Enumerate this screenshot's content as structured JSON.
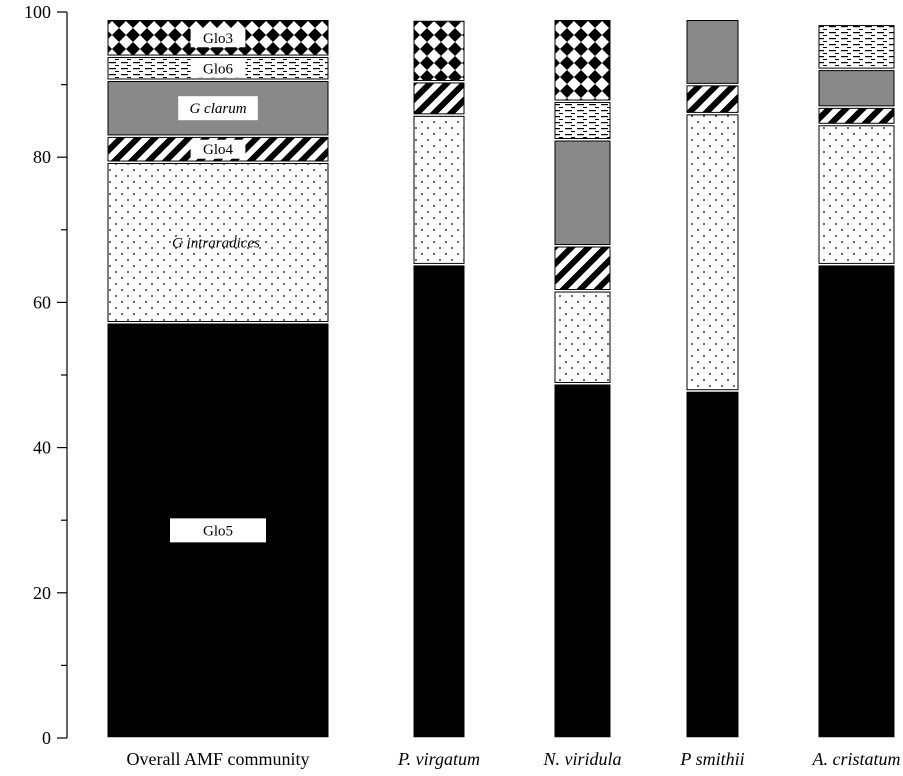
{
  "chart_data": {
    "type": "bar",
    "stacked": true,
    "ylim": [
      0,
      100
    ],
    "yticks": [
      0,
      20,
      40,
      60,
      80,
      100
    ],
    "xlabel": "",
    "ylabel": "",
    "grid": false,
    "categories": [
      "Overall AMF community",
      "P. virgatum",
      "N. viridula",
      "P smithii",
      "A. cristatum"
    ],
    "category_italic": [
      false,
      true,
      true,
      true,
      true
    ],
    "segment_labels": {
      "Glo5": "Glo5",
      "G intraradices": "G intraradices",
      "Glo4": "Glo4",
      "G clarum": "G clarum",
      "Glo6": "Glo6",
      "Glo3": "Glo3"
    },
    "series": [
      {
        "name": "Glo5",
        "pattern": "solid-black",
        "values": [
          57.2,
          65.2,
          48.8,
          47.8,
          65.2
        ]
      },
      {
        "name": "G intraradices",
        "pattern": "dots",
        "values": [
          22.1,
          20.6,
          12.8,
          38.2,
          19.3
        ]
      },
      {
        "name": "Glo4",
        "pattern": "diagonal-hatch",
        "values": [
          3.6,
          4.6,
          6.2,
          4.0,
          2.4
        ]
      },
      {
        "name": "G clarum",
        "pattern": "solid-gray",
        "values": [
          7.7,
          0,
          14.6,
          9.0,
          5.2
        ]
      },
      {
        "name": "Glo6",
        "pattern": "dashes",
        "values": [
          3.3,
          0,
          5.3,
          0,
          6.2
        ]
      },
      {
        "name": "Glo3",
        "pattern": "checker",
        "values": [
          5.1,
          8.5,
          11.3,
          0,
          0
        ]
      }
    ],
    "colors": {
      "black": "#000000",
      "gray": "#898989",
      "white": "#ffffff"
    }
  }
}
